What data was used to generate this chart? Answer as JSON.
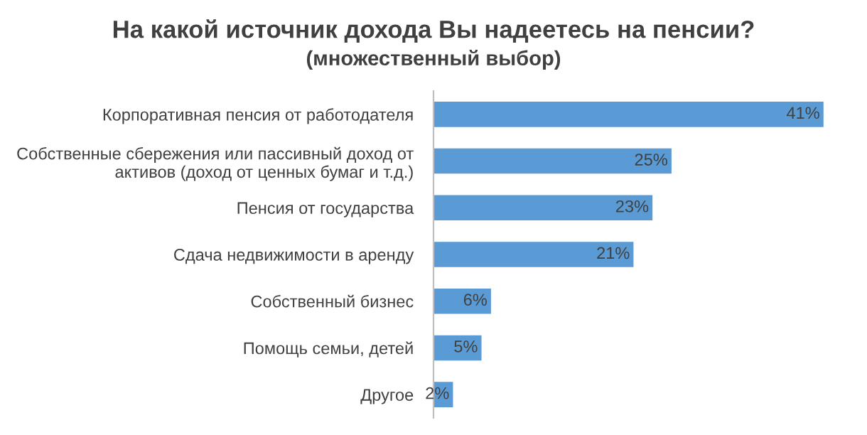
{
  "chart_data": {
    "type": "bar",
    "orientation": "horizontal",
    "title": "На какой источник дохода Вы надеетесь на пенсии?",
    "subtitle": "(множественный выбор)",
    "categories": [
      "Корпоративная пенсия от работодателя",
      "Собственные сбережения или пассивный доход от\nактивов (доход от ценных бумаг и т.д.)",
      "Пенсия от государства",
      "Сдача недвижимости в аренду",
      "Собственный бизнес",
      "Помощь семьи, детей",
      "Другое"
    ],
    "values": [
      41,
      25,
      23,
      21,
      6,
      5,
      2
    ],
    "value_labels": [
      "41%",
      "25%",
      "23%",
      "21%",
      "6%",
      "5%",
      "2%"
    ],
    "color": "#5b9bd5",
    "grid": false,
    "legend": false
  }
}
